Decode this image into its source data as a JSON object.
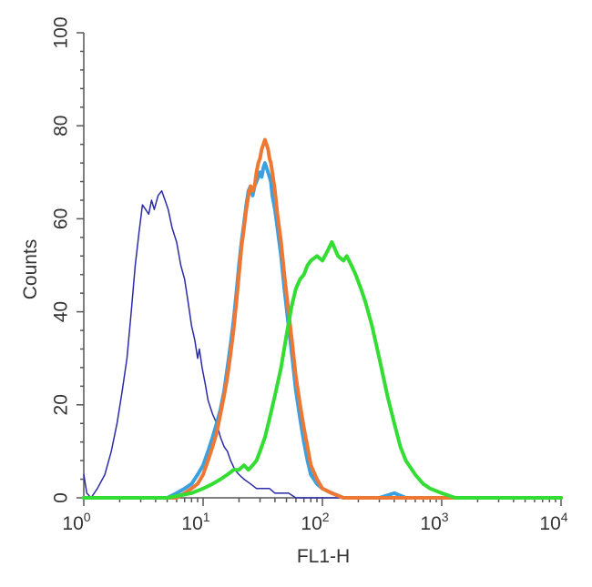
{
  "chart_data": {
    "type": "line",
    "title": "",
    "xlabel": "FL1-H",
    "ylabel": "Counts",
    "x_scale": "log",
    "xlim": [
      1,
      10000
    ],
    "ylim": [
      0,
      100
    ],
    "grid": false,
    "legend": "none",
    "x_ticks": [
      {
        "value": 1,
        "base": "10",
        "exp": "0"
      },
      {
        "value": 10,
        "base": "10",
        "exp": "1"
      },
      {
        "value": 100,
        "base": "10",
        "exp": "2"
      },
      {
        "value": 1000,
        "base": "10",
        "exp": "3"
      },
      {
        "value": 10000,
        "base": "10",
        "exp": "4"
      }
    ],
    "y_ticks": [
      "0",
      "20",
      "40",
      "60",
      "80",
      "100"
    ],
    "y_tick_values": [
      0,
      20,
      40,
      60,
      80,
      100
    ],
    "series": [
      {
        "color": "#2b2ba8",
        "stroke": 1.5,
        "points": [
          [
            1.0,
            5
          ],
          [
            1.06,
            1
          ],
          [
            1.15,
            0
          ],
          [
            1.3,
            2
          ],
          [
            1.5,
            5
          ],
          [
            1.7,
            10
          ],
          [
            1.9,
            16
          ],
          [
            2.1,
            23
          ],
          [
            2.3,
            30
          ],
          [
            2.5,
            40
          ],
          [
            2.7,
            50
          ],
          [
            2.9,
            57
          ],
          [
            3.1,
            63
          ],
          [
            3.3,
            62
          ],
          [
            3.5,
            61
          ],
          [
            3.7,
            64
          ],
          [
            3.9,
            62
          ],
          [
            4.2,
            65
          ],
          [
            4.5,
            66
          ],
          [
            4.8,
            64
          ],
          [
            5.1,
            62
          ],
          [
            5.5,
            58
          ],
          [
            6.0,
            55
          ],
          [
            6.5,
            50
          ],
          [
            7.0,
            47
          ],
          [
            7.5,
            42
          ],
          [
            8.0,
            37
          ],
          [
            8.5,
            34
          ],
          [
            9.0,
            30
          ],
          [
            9.3,
            32
          ],
          [
            9.8,
            28
          ],
          [
            10.5,
            24
          ],
          [
            11,
            21
          ],
          [
            12,
            18
          ],
          [
            13,
            16
          ],
          [
            14,
            13
          ],
          [
            15,
            11
          ],
          [
            16,
            10
          ],
          [
            17,
            8
          ],
          [
            18.5,
            6
          ],
          [
            20,
            5
          ],
          [
            22,
            4
          ],
          [
            25,
            3
          ],
          [
            28,
            2
          ],
          [
            32,
            2
          ],
          [
            36,
            2
          ],
          [
            40,
            1
          ],
          [
            45,
            1
          ],
          [
            52,
            1
          ],
          [
            60,
            0
          ],
          [
            80,
            0
          ],
          [
            100,
            0
          ],
          [
            140,
            0
          ],
          [
            200,
            0
          ],
          [
            400,
            0
          ],
          [
            1000,
            0
          ],
          [
            10000,
            0
          ]
        ]
      },
      {
        "color": "#3aa0e0",
        "stroke": 4,
        "points": [
          [
            1,
            0
          ],
          [
            5,
            0
          ],
          [
            6,
            1
          ],
          [
            7,
            2
          ],
          [
            8,
            3
          ],
          [
            9,
            5
          ],
          [
            10,
            7
          ],
          [
            11,
            10
          ],
          [
            12,
            13
          ],
          [
            13,
            16
          ],
          [
            14,
            19
          ],
          [
            15,
            23
          ],
          [
            16,
            28
          ],
          [
            17,
            33
          ],
          [
            18,
            38
          ],
          [
            19,
            44
          ],
          [
            20,
            50
          ],
          [
            21,
            55
          ],
          [
            22,
            59
          ],
          [
            23,
            63
          ],
          [
            24,
            66
          ],
          [
            25,
            67
          ],
          [
            26,
            65
          ],
          [
            27,
            67
          ],
          [
            28,
            68
          ],
          [
            29,
            69
          ],
          [
            30,
            70
          ],
          [
            31,
            69
          ],
          [
            32,
            71
          ],
          [
            33,
            72
          ],
          [
            34,
            71
          ],
          [
            35,
            70
          ],
          [
            36,
            69
          ],
          [
            37,
            68
          ],
          [
            38,
            65
          ],
          [
            40,
            62
          ],
          [
            42,
            58
          ],
          [
            45,
            52
          ],
          [
            48,
            45
          ],
          [
            52,
            37
          ],
          [
            56,
            30
          ],
          [
            60,
            23
          ],
          [
            65,
            17
          ],
          [
            70,
            12
          ],
          [
            75,
            8
          ],
          [
            80,
            5
          ],
          [
            90,
            3
          ],
          [
            100,
            2
          ],
          [
            120,
            1
          ],
          [
            150,
            0
          ],
          [
            300,
            0
          ],
          [
            400,
            1
          ],
          [
            500,
            0
          ],
          [
            10000,
            0
          ]
        ]
      },
      {
        "color": "#ee7733",
        "stroke": 4,
        "points": [
          [
            1,
            0
          ],
          [
            6,
            0
          ],
          [
            7,
            1
          ],
          [
            8,
            2
          ],
          [
            9,
            3
          ],
          [
            10,
            5
          ],
          [
            11,
            8
          ],
          [
            12,
            11
          ],
          [
            13,
            14
          ],
          [
            14,
            18
          ],
          [
            15,
            22
          ],
          [
            16,
            26
          ],
          [
            17,
            31
          ],
          [
            18,
            36
          ],
          [
            19,
            42
          ],
          [
            20,
            48
          ],
          [
            21,
            54
          ],
          [
            22,
            58
          ],
          [
            23,
            62
          ],
          [
            24,
            65
          ],
          [
            25,
            67
          ],
          [
            26,
            66
          ],
          [
            27,
            67
          ],
          [
            28,
            70
          ],
          [
            29,
            72
          ],
          [
            30,
            73
          ],
          [
            31,
            75
          ],
          [
            32,
            76
          ],
          [
            33,
            77
          ],
          [
            34,
            76
          ],
          [
            35,
            75
          ],
          [
            36,
            73
          ],
          [
            37,
            72
          ],
          [
            38,
            70
          ],
          [
            40,
            66
          ],
          [
            42,
            61
          ],
          [
            45,
            55
          ],
          [
            48,
            48
          ],
          [
            52,
            40
          ],
          [
            56,
            33
          ],
          [
            60,
            26
          ],
          [
            65,
            20
          ],
          [
            70,
            15
          ],
          [
            75,
            11
          ],
          [
            80,
            7
          ],
          [
            90,
            4
          ],
          [
            100,
            2
          ],
          [
            120,
            1
          ],
          [
            150,
            0
          ],
          [
            10000,
            0
          ]
        ]
      },
      {
        "color": "#33dd33",
        "stroke": 4,
        "points": [
          [
            1,
            0
          ],
          [
            5,
            0
          ],
          [
            8,
            1
          ],
          [
            10,
            2
          ],
          [
            12,
            3
          ],
          [
            14,
            4
          ],
          [
            16,
            5
          ],
          [
            18,
            6
          ],
          [
            20,
            6
          ],
          [
            22,
            7
          ],
          [
            24,
            6
          ],
          [
            26,
            7
          ],
          [
            28,
            8
          ],
          [
            30,
            10
          ],
          [
            33,
            13
          ],
          [
            36,
            17
          ],
          [
            40,
            22
          ],
          [
            45,
            28
          ],
          [
            50,
            35
          ],
          [
            55,
            41
          ],
          [
            60,
            45
          ],
          [
            65,
            47
          ],
          [
            70,
            48
          ],
          [
            75,
            50
          ],
          [
            80,
            51
          ],
          [
            90,
            52
          ],
          [
            100,
            51
          ],
          [
            110,
            53
          ],
          [
            120,
            55
          ],
          [
            125,
            54
          ],
          [
            135,
            52
          ],
          [
            150,
            51
          ],
          [
            160,
            52
          ],
          [
            175,
            50
          ],
          [
            190,
            48
          ],
          [
            210,
            45
          ],
          [
            230,
            42
          ],
          [
            260,
            37
          ],
          [
            300,
            30
          ],
          [
            350,
            22
          ],
          [
            400,
            16
          ],
          [
            450,
            11
          ],
          [
            500,
            8
          ],
          [
            600,
            5
          ],
          [
            700,
            3
          ],
          [
            800,
            2
          ],
          [
            1000,
            1
          ],
          [
            1300,
            0
          ],
          [
            10000,
            0
          ]
        ]
      }
    ]
  }
}
